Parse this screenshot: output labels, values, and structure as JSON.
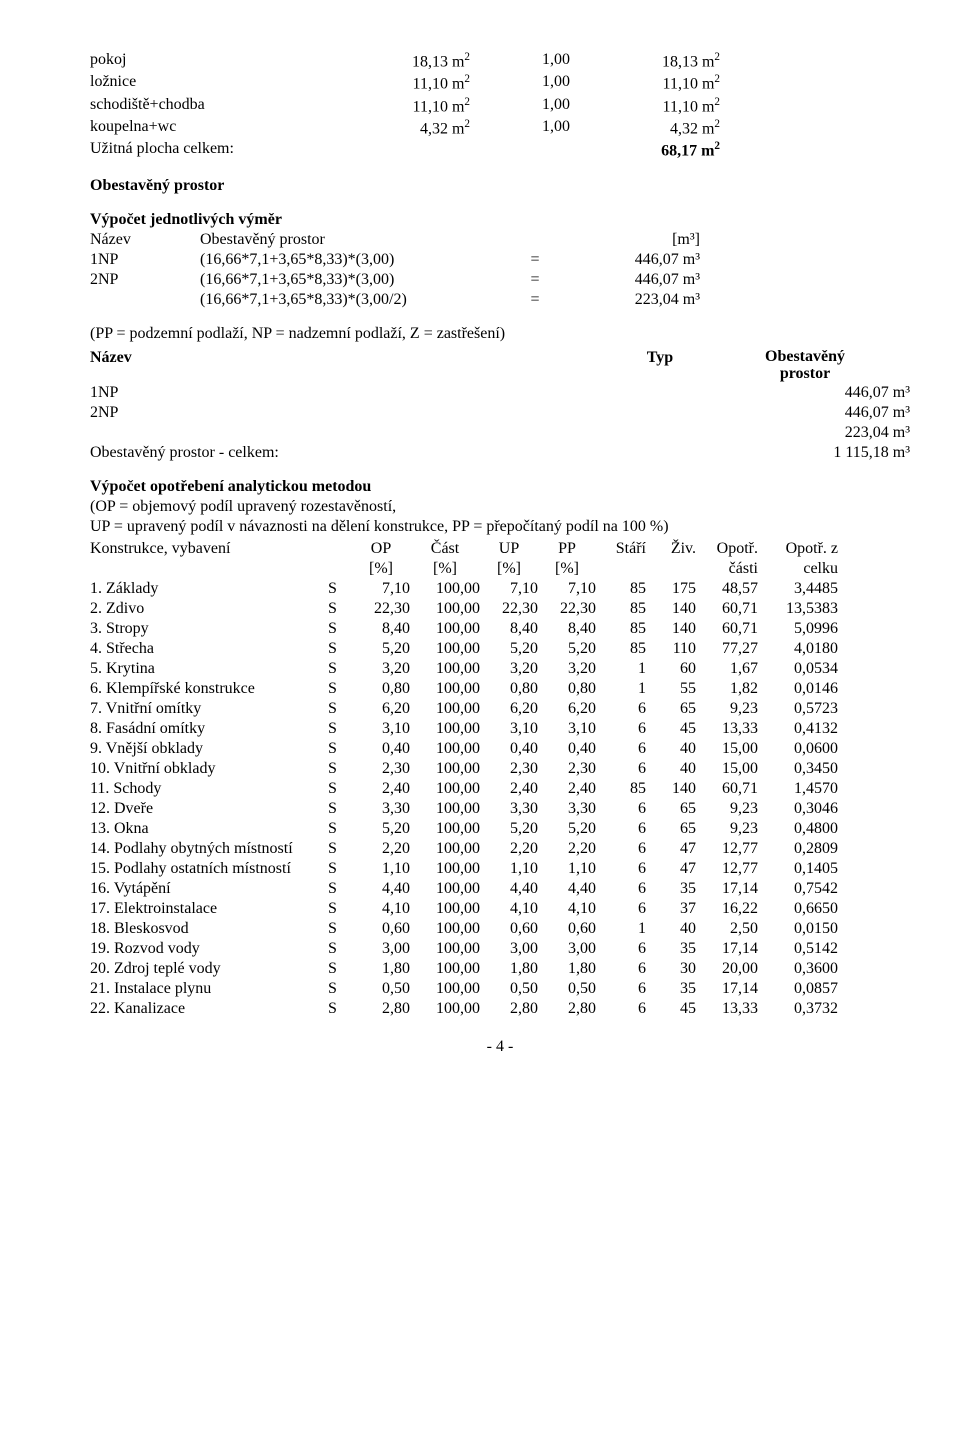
{
  "areas": {
    "rows": [
      {
        "name": "pokoj",
        "val": "18,13 m",
        "coef": "1,00",
        "res": "18,13 m"
      },
      {
        "name": "ložnice",
        "val": "11,10 m",
        "coef": "1,00",
        "res": "11,10 m"
      },
      {
        "name": "schodiště+chodba",
        "val": "11,10 m",
        "coef": "1,00",
        "res": "11,10 m"
      },
      {
        "name": "koupelna+wc",
        "val": "4,32 m",
        "coef": "1,00",
        "res": "4,32 m"
      }
    ],
    "total_label": "Užitná plocha celkem:",
    "total_val": "68,17 m"
  },
  "section2_title": "Obestavěný prostor",
  "calc": {
    "heading": "Výpočet jednotlivých výměr",
    "header_name": "Název",
    "header_op": "Obestavěný prostor",
    "header_unit": "[m³]",
    "rows": [
      {
        "n": "1NP",
        "expr": "(16,66*7,1+3,65*8,33)*(3,00)",
        "eq": "=",
        "val": "446,07 m³"
      },
      {
        "n": "2NP",
        "expr": "(16,66*7,1+3,65*8,33)*(3,00)",
        "eq": "=",
        "val": "446,07 m³"
      },
      {
        "n": "",
        "expr": "(16,66*7,1+3,65*8,33)*(3,00/2)",
        "eq": "=",
        "val": "223,04 m³"
      }
    ]
  },
  "ppnote": "(PP = podzemní podlaží, NP = nadzemní podlaží, Z = zastřešení)",
  "named": {
    "h_name": "Název",
    "h_typ": "Typ",
    "h_op1": "Obestavěný",
    "h_op2": "prostor",
    "rows": [
      {
        "n": "1NP",
        "v": "446,07 m³"
      },
      {
        "n": "2NP",
        "v": "446,07 m³"
      },
      {
        "n": "",
        "v": "223,04 m³"
      }
    ],
    "total_label": "Obestavěný prostor - celkem:",
    "total_val": "1 115,18 m³"
  },
  "method": {
    "title": "Výpočet opotřebení analytickou metodou",
    "line1": "(OP = objemový podíl upravený rozestavěností,",
    "line2": "UP = upravený podíl v návaznosti na dělení konstrukce, PP = přepočítaný podíl na 100 %)"
  },
  "tbl": {
    "h1": {
      "name": "Konstrukce, vybavení",
      "op": "OP",
      "cast": "Část",
      "up": "UP",
      "pp": "PP",
      "stari": "Stáří",
      "ziv": "Živ.",
      "opotr": "Opotř.",
      "opz": "Opotř. z"
    },
    "h2": {
      "op": "[%]",
      "cast": "[%]",
      "up": "[%]",
      "pp": "[%]",
      "opotr": "části",
      "opz": "celku"
    },
    "rows": [
      {
        "n": "1. Základy",
        "s": "S",
        "op": "7,10",
        "cast": "100,00",
        "up": "7,10",
        "pp": "7,10",
        "st": "85",
        "zv": "175",
        "ot": "48,57",
        "oz": "3,4485"
      },
      {
        "n": "2. Zdivo",
        "s": "S",
        "op": "22,30",
        "cast": "100,00",
        "up": "22,30",
        "pp": "22,30",
        "st": "85",
        "zv": "140",
        "ot": "60,71",
        "oz": "13,5383"
      },
      {
        "n": "3. Stropy",
        "s": "S",
        "op": "8,40",
        "cast": "100,00",
        "up": "8,40",
        "pp": "8,40",
        "st": "85",
        "zv": "140",
        "ot": "60,71",
        "oz": "5,0996"
      },
      {
        "n": "4. Střecha",
        "s": "S",
        "op": "5,20",
        "cast": "100,00",
        "up": "5,20",
        "pp": "5,20",
        "st": "85",
        "zv": "110",
        "ot": "77,27",
        "oz": "4,0180"
      },
      {
        "n": "5. Krytina",
        "s": "S",
        "op": "3,20",
        "cast": "100,00",
        "up": "3,20",
        "pp": "3,20",
        "st": "1",
        "zv": "60",
        "ot": "1,67",
        "oz": "0,0534"
      },
      {
        "n": "6. Klempířské konstrukce",
        "s": "S",
        "op": "0,80",
        "cast": "100,00",
        "up": "0,80",
        "pp": "0,80",
        "st": "1",
        "zv": "55",
        "ot": "1,82",
        "oz": "0,0146"
      },
      {
        "n": "7. Vnitřní omítky",
        "s": "S",
        "op": "6,20",
        "cast": "100,00",
        "up": "6,20",
        "pp": "6,20",
        "st": "6",
        "zv": "65",
        "ot": "9,23",
        "oz": "0,5723"
      },
      {
        "n": "8. Fasádní omítky",
        "s": "S",
        "op": "3,10",
        "cast": "100,00",
        "up": "3,10",
        "pp": "3,10",
        "st": "6",
        "zv": "45",
        "ot": "13,33",
        "oz": "0,4132"
      },
      {
        "n": "9. Vnější obklady",
        "s": "S",
        "op": "0,40",
        "cast": "100,00",
        "up": "0,40",
        "pp": "0,40",
        "st": "6",
        "zv": "40",
        "ot": "15,00",
        "oz": "0,0600"
      },
      {
        "n": "10. Vnitřní obklady",
        "s": "S",
        "op": "2,30",
        "cast": "100,00",
        "up": "2,30",
        "pp": "2,30",
        "st": "6",
        "zv": "40",
        "ot": "15,00",
        "oz": "0,3450"
      },
      {
        "n": "11. Schody",
        "s": "S",
        "op": "2,40",
        "cast": "100,00",
        "up": "2,40",
        "pp": "2,40",
        "st": "85",
        "zv": "140",
        "ot": "60,71",
        "oz": "1,4570"
      },
      {
        "n": "12. Dveře",
        "s": "S",
        "op": "3,30",
        "cast": "100,00",
        "up": "3,30",
        "pp": "3,30",
        "st": "6",
        "zv": "65",
        "ot": "9,23",
        "oz": "0,3046"
      },
      {
        "n": "13. Okna",
        "s": "S",
        "op": "5,20",
        "cast": "100,00",
        "up": "5,20",
        "pp": "5,20",
        "st": "6",
        "zv": "65",
        "ot": "9,23",
        "oz": "0,4800"
      },
      {
        "n": "14. Podlahy obytných místností",
        "s": "S",
        "op": "2,20",
        "cast": "100,00",
        "up": "2,20",
        "pp": "2,20",
        "st": "6",
        "zv": "47",
        "ot": "12,77",
        "oz": "0,2809"
      },
      {
        "n": "15. Podlahy ostatních místností",
        "s": "S",
        "op": "1,10",
        "cast": "100,00",
        "up": "1,10",
        "pp": "1,10",
        "st": "6",
        "zv": "47",
        "ot": "12,77",
        "oz": "0,1405"
      },
      {
        "n": "16. Vytápění",
        "s": "S",
        "op": "4,40",
        "cast": "100,00",
        "up": "4,40",
        "pp": "4,40",
        "st": "6",
        "zv": "35",
        "ot": "17,14",
        "oz": "0,7542"
      },
      {
        "n": "17. Elektroinstalace",
        "s": "S",
        "op": "4,10",
        "cast": "100,00",
        "up": "4,10",
        "pp": "4,10",
        "st": "6",
        "zv": "37",
        "ot": "16,22",
        "oz": "0,6650"
      },
      {
        "n": "18. Bleskosvod",
        "s": "S",
        "op": "0,60",
        "cast": "100,00",
        "up": "0,60",
        "pp": "0,60",
        "st": "1",
        "zv": "40",
        "ot": "2,50",
        "oz": "0,0150"
      },
      {
        "n": "19. Rozvod vody",
        "s": "S",
        "op": "3,00",
        "cast": "100,00",
        "up": "3,00",
        "pp": "3,00",
        "st": "6",
        "zv": "35",
        "ot": "17,14",
        "oz": "0,5142"
      },
      {
        "n": "20. Zdroj teplé vody",
        "s": "S",
        "op": "1,80",
        "cast": "100,00",
        "up": "1,80",
        "pp": "1,80",
        "st": "6",
        "zv": "30",
        "ot": "20,00",
        "oz": "0,3600"
      },
      {
        "n": "21. Instalace plynu",
        "s": "S",
        "op": "0,50",
        "cast": "100,00",
        "up": "0,50",
        "pp": "0,50",
        "st": "6",
        "zv": "35",
        "ot": "17,14",
        "oz": "0,0857"
      },
      {
        "n": "22. Kanalizace",
        "s": "S",
        "op": "2,80",
        "cast": "100,00",
        "up": "2,80",
        "pp": "2,80",
        "st": "6",
        "zv": "45",
        "ot": "13,33",
        "oz": "0,3732"
      }
    ]
  },
  "footer": "- 4 -"
}
